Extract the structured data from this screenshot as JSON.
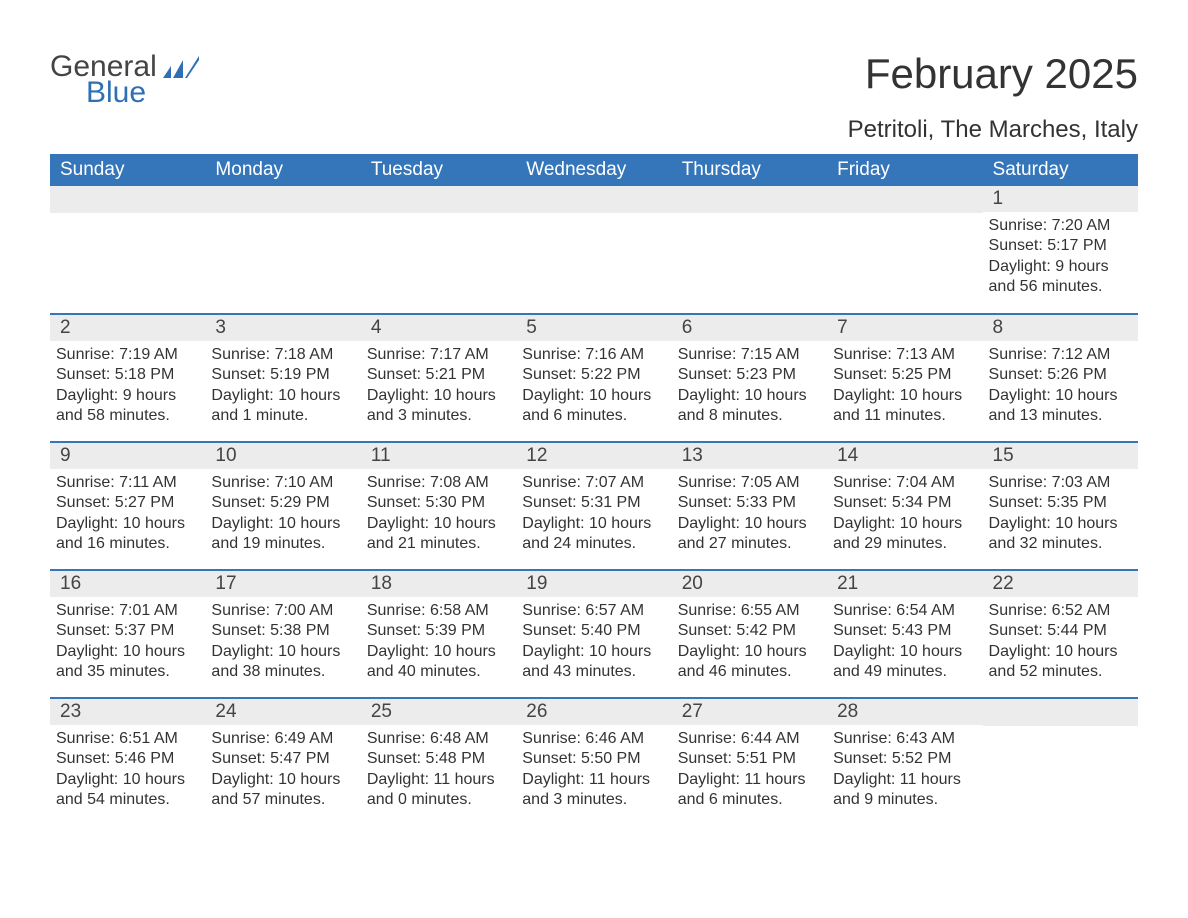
{
  "logo": {
    "general": "General",
    "blue": "Blue",
    "chart_color": "#2f6fb3"
  },
  "title": "February 2025",
  "subtitle": "Petritoli, The Marches, Italy",
  "colors": {
    "header_bg": "#3575b9",
    "header_text": "#ffffff",
    "daynum_bg": "#ececec",
    "week_border": "#3575b9",
    "body_text": "#333333"
  },
  "weekdays": [
    "Sunday",
    "Monday",
    "Tuesday",
    "Wednesday",
    "Thursday",
    "Friday",
    "Saturday"
  ],
  "weeks": [
    [
      {
        "num": "",
        "sunrise": "",
        "sunset": "",
        "daylight": ""
      },
      {
        "num": "",
        "sunrise": "",
        "sunset": "",
        "daylight": ""
      },
      {
        "num": "",
        "sunrise": "",
        "sunset": "",
        "daylight": ""
      },
      {
        "num": "",
        "sunrise": "",
        "sunset": "",
        "daylight": ""
      },
      {
        "num": "",
        "sunrise": "",
        "sunset": "",
        "daylight": ""
      },
      {
        "num": "",
        "sunrise": "",
        "sunset": "",
        "daylight": ""
      },
      {
        "num": "1",
        "sunrise": "Sunrise: 7:20 AM",
        "sunset": "Sunset: 5:17 PM",
        "daylight": "Daylight: 9 hours and 56 minutes."
      }
    ],
    [
      {
        "num": "2",
        "sunrise": "Sunrise: 7:19 AM",
        "sunset": "Sunset: 5:18 PM",
        "daylight": "Daylight: 9 hours and 58 minutes."
      },
      {
        "num": "3",
        "sunrise": "Sunrise: 7:18 AM",
        "sunset": "Sunset: 5:19 PM",
        "daylight": "Daylight: 10 hours and 1 minute."
      },
      {
        "num": "4",
        "sunrise": "Sunrise: 7:17 AM",
        "sunset": "Sunset: 5:21 PM",
        "daylight": "Daylight: 10 hours and 3 minutes."
      },
      {
        "num": "5",
        "sunrise": "Sunrise: 7:16 AM",
        "sunset": "Sunset: 5:22 PM",
        "daylight": "Daylight: 10 hours and 6 minutes."
      },
      {
        "num": "6",
        "sunrise": "Sunrise: 7:15 AM",
        "sunset": "Sunset: 5:23 PM",
        "daylight": "Daylight: 10 hours and 8 minutes."
      },
      {
        "num": "7",
        "sunrise": "Sunrise: 7:13 AM",
        "sunset": "Sunset: 5:25 PM",
        "daylight": "Daylight: 10 hours and 11 minutes."
      },
      {
        "num": "8",
        "sunrise": "Sunrise: 7:12 AM",
        "sunset": "Sunset: 5:26 PM",
        "daylight": "Daylight: 10 hours and 13 minutes."
      }
    ],
    [
      {
        "num": "9",
        "sunrise": "Sunrise: 7:11 AM",
        "sunset": "Sunset: 5:27 PM",
        "daylight": "Daylight: 10 hours and 16 minutes."
      },
      {
        "num": "10",
        "sunrise": "Sunrise: 7:10 AM",
        "sunset": "Sunset: 5:29 PM",
        "daylight": "Daylight: 10 hours and 19 minutes."
      },
      {
        "num": "11",
        "sunrise": "Sunrise: 7:08 AM",
        "sunset": "Sunset: 5:30 PM",
        "daylight": "Daylight: 10 hours and 21 minutes."
      },
      {
        "num": "12",
        "sunrise": "Sunrise: 7:07 AM",
        "sunset": "Sunset: 5:31 PM",
        "daylight": "Daylight: 10 hours and 24 minutes."
      },
      {
        "num": "13",
        "sunrise": "Sunrise: 7:05 AM",
        "sunset": "Sunset: 5:33 PM",
        "daylight": "Daylight: 10 hours and 27 minutes."
      },
      {
        "num": "14",
        "sunrise": "Sunrise: 7:04 AM",
        "sunset": "Sunset: 5:34 PM",
        "daylight": "Daylight: 10 hours and 29 minutes."
      },
      {
        "num": "15",
        "sunrise": "Sunrise: 7:03 AM",
        "sunset": "Sunset: 5:35 PM",
        "daylight": "Daylight: 10 hours and 32 minutes."
      }
    ],
    [
      {
        "num": "16",
        "sunrise": "Sunrise: 7:01 AM",
        "sunset": "Sunset: 5:37 PM",
        "daylight": "Daylight: 10 hours and 35 minutes."
      },
      {
        "num": "17",
        "sunrise": "Sunrise: 7:00 AM",
        "sunset": "Sunset: 5:38 PM",
        "daylight": "Daylight: 10 hours and 38 minutes."
      },
      {
        "num": "18",
        "sunrise": "Sunrise: 6:58 AM",
        "sunset": "Sunset: 5:39 PM",
        "daylight": "Daylight: 10 hours and 40 minutes."
      },
      {
        "num": "19",
        "sunrise": "Sunrise: 6:57 AM",
        "sunset": "Sunset: 5:40 PM",
        "daylight": "Daylight: 10 hours and 43 minutes."
      },
      {
        "num": "20",
        "sunrise": "Sunrise: 6:55 AM",
        "sunset": "Sunset: 5:42 PM",
        "daylight": "Daylight: 10 hours and 46 minutes."
      },
      {
        "num": "21",
        "sunrise": "Sunrise: 6:54 AM",
        "sunset": "Sunset: 5:43 PM",
        "daylight": "Daylight: 10 hours and 49 minutes."
      },
      {
        "num": "22",
        "sunrise": "Sunrise: 6:52 AM",
        "sunset": "Sunset: 5:44 PM",
        "daylight": "Daylight: 10 hours and 52 minutes."
      }
    ],
    [
      {
        "num": "23",
        "sunrise": "Sunrise: 6:51 AM",
        "sunset": "Sunset: 5:46 PM",
        "daylight": "Daylight: 10 hours and 54 minutes."
      },
      {
        "num": "24",
        "sunrise": "Sunrise: 6:49 AM",
        "sunset": "Sunset: 5:47 PM",
        "daylight": "Daylight: 10 hours and 57 minutes."
      },
      {
        "num": "25",
        "sunrise": "Sunrise: 6:48 AM",
        "sunset": "Sunset: 5:48 PM",
        "daylight": "Daylight: 11 hours and 0 minutes."
      },
      {
        "num": "26",
        "sunrise": "Sunrise: 6:46 AM",
        "sunset": "Sunset: 5:50 PM",
        "daylight": "Daylight: 11 hours and 3 minutes."
      },
      {
        "num": "27",
        "sunrise": "Sunrise: 6:44 AM",
        "sunset": "Sunset: 5:51 PM",
        "daylight": "Daylight: 11 hours and 6 minutes."
      },
      {
        "num": "28",
        "sunrise": "Sunrise: 6:43 AM",
        "sunset": "Sunset: 5:52 PM",
        "daylight": "Daylight: 11 hours and 9 minutes."
      },
      {
        "num": "",
        "sunrise": "",
        "sunset": "",
        "daylight": ""
      }
    ]
  ]
}
